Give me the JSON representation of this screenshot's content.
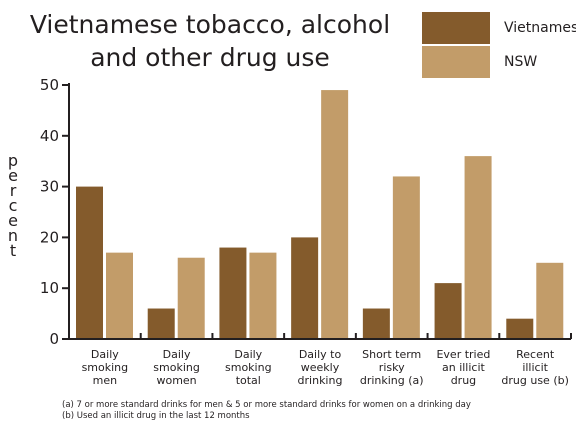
{
  "chart_data": {
    "type": "bar",
    "title_lines": [
      "Vietnamese tobacco, alcohol",
      "and other drug use"
    ],
    "ylabel": "percent",
    "xlabel": "",
    "ylim": [
      0,
      50
    ],
    "yticks": [
      0,
      10,
      20,
      30,
      40,
      50
    ],
    "grid": false,
    "legend_position": "top-right",
    "categories": [
      [
        "Daily",
        "smoking",
        "men"
      ],
      [
        "Daily",
        "smoking",
        "women"
      ],
      [
        "Daily",
        "smoking",
        "total"
      ],
      [
        "Daily to",
        "weekly",
        "drinking"
      ],
      [
        "Short term",
        "risky",
        "drinking (a)"
      ],
      [
        "Ever tried",
        "an illicit",
        "drug"
      ],
      [
        "Recent",
        "illicit",
        "drug use (b)"
      ]
    ],
    "series": [
      {
        "name": "Vietnamese",
        "color": "#845b2c",
        "values": [
          30,
          6,
          18,
          20,
          6,
          11,
          4
        ]
      },
      {
        "name": "NSW",
        "color": "#c29c69",
        "values": [
          17,
          16,
          17,
          49,
          32,
          36,
          15
        ]
      }
    ],
    "footnotes": [
      "(a) 7 or more standard drinks for men & 5 or more standard drinks for women on a drinking day",
      "(b) Used an illicit drug in the last 12 months"
    ]
  }
}
